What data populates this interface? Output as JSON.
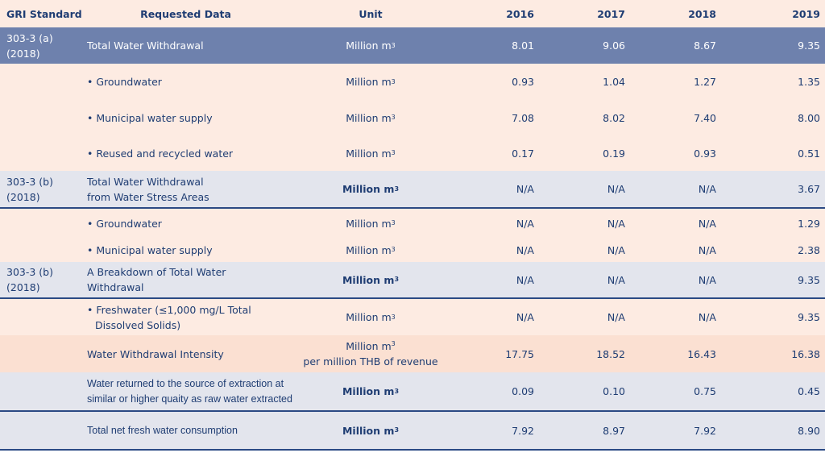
{
  "header": {
    "gri": "GRI Standard",
    "requested": "Requested Data",
    "unit": "Unit",
    "y2016": "2016",
    "y2017": "2017",
    "y2018": "2018",
    "y2019": "2019"
  },
  "rows": [
    {
      "gri": "303-3 (a)",
      "gri2": "(2018)",
      "label": "Total Water Withdrawal",
      "unit": "Million m",
      "sup": "3",
      "v2016": "8.01",
      "v2017": "9.06",
      "v2018": "8.67",
      "v2019": "9.35"
    },
    {
      "label": "• Groundwater",
      "unit": "Million m",
      "sup": "3",
      "v2016": "0.93",
      "v2017": "1.04",
      "v2018": "1.27",
      "v2019": "1.35"
    },
    {
      "label": "• Municipal water supply",
      "unit": "Million m",
      "sup": "3",
      "v2016": "7.08",
      "v2017": "8.02",
      "v2018": "7.40",
      "v2019": "8.00"
    },
    {
      "label": "• Reused and recycled water",
      "unit": "Million m",
      "sup": "3",
      "v2016": "0.17",
      "v2017": "0.19",
      "v2018": "0.93",
      "v2019": "0.51"
    },
    {
      "gri": "303-3 (b)",
      "gri2": "(2018)",
      "label": "Total Water Withdrawal",
      "label2": "from Water Stress Areas",
      "unit": "Million m",
      "sup": "3",
      "v2016": "N/A",
      "v2017": "N/A",
      "v2018": "N/A",
      "v2019": "3.67"
    },
    {
      "label": "• Groundwater",
      "unit": "Million m",
      "sup": "3",
      "v2016": "N/A",
      "v2017": "N/A",
      "v2018": "N/A",
      "v2019": "1.29"
    },
    {
      "label": "• Municipal water supply",
      "unit": "Million m",
      "sup": "3",
      "v2016": "N/A",
      "v2017": "N/A",
      "v2018": "N/A",
      "v2019": "2.38"
    },
    {
      "gri": "303-3 (b)",
      "gri2": "(2018)",
      "label": "A Breakdown of Total Water",
      "label2": "Withdrawal",
      "unit": "Million m",
      "sup": "3",
      "v2016": "N/A",
      "v2017": "N/A",
      "v2018": "N/A",
      "v2019": "9.35"
    },
    {
      "label": "• Freshwater (≤1,000 mg/L Total",
      "label2": "Dissolved Solids)",
      "unit": "Million m",
      "sup": "3",
      "v2016": "N/A",
      "v2017": "N/A",
      "v2018": "N/A",
      "v2019": "9.35"
    },
    {
      "label": "Water Withdrawal Intensity",
      "unit": "Million m",
      "sup": "3",
      "unit2": "per million THB of revenue",
      "v2016": "17.75",
      "v2017": "18.52",
      "v2018": "16.43",
      "v2019": "16.38"
    },
    {
      "label": "Water  returned to the source of extraction at",
      "label2": "similar or higher quaity as raw water extracted",
      "unit": "Million m",
      "sup": "3",
      "v2016": "0.09",
      "v2017": "0.10",
      "v2018": "0.75",
      "v2019": "0.45"
    },
    {
      "label": "Total net fresh water consumption",
      "unit": "Million m",
      "sup": "3",
      "v2016": "7.92",
      "v2017": "8.97",
      "v2018": "7.92",
      "v2019": "8.90"
    }
  ]
}
